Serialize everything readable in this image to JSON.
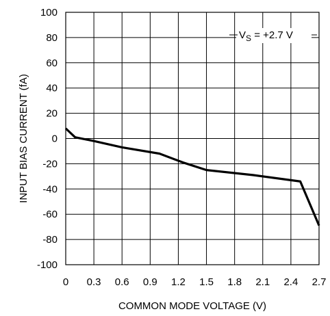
{
  "chart_data": {
    "type": "line",
    "title": "",
    "xlabel": "COMMON MODE VOLTAGE (V)",
    "ylabel": "INPUT BIAS CURRENT (fA)",
    "xlim": [
      0,
      2.7
    ],
    "ylim": [
      -100,
      100
    ],
    "grid": true,
    "x_ticks": [
      0,
      0.3,
      0.6,
      0.9,
      1.2,
      1.5,
      1.8,
      2.1,
      2.4,
      2.7
    ],
    "x_tick_labels": [
      "0",
      "0.3",
      "0.6",
      "0.9",
      "1.2",
      "1.5",
      "1.8",
      "2.1",
      "2.4",
      "2.7"
    ],
    "y_ticks": [
      100,
      80,
      60,
      40,
      20,
      0,
      -20,
      -40,
      -60,
      -80,
      -100
    ],
    "y_tick_labels": [
      "100",
      "80",
      "60",
      "40",
      "20",
      "0",
      "-20",
      "-40",
      "-60",
      "-80",
      "-100"
    ],
    "annotation": {
      "prefix": "V",
      "subscript": "S",
      "suffix": " = +2.7 V"
    },
    "series": [
      {
        "x": [
          0,
          0.1,
          0.3,
          0.6,
          1.0,
          1.25,
          1.5,
          2.0,
          2.5,
          2.7
        ],
        "y": [
          8,
          1,
          -2,
          -7,
          -12,
          -19,
          -25,
          -29,
          -34,
          -69
        ],
        "color": "#000000"
      }
    ]
  }
}
